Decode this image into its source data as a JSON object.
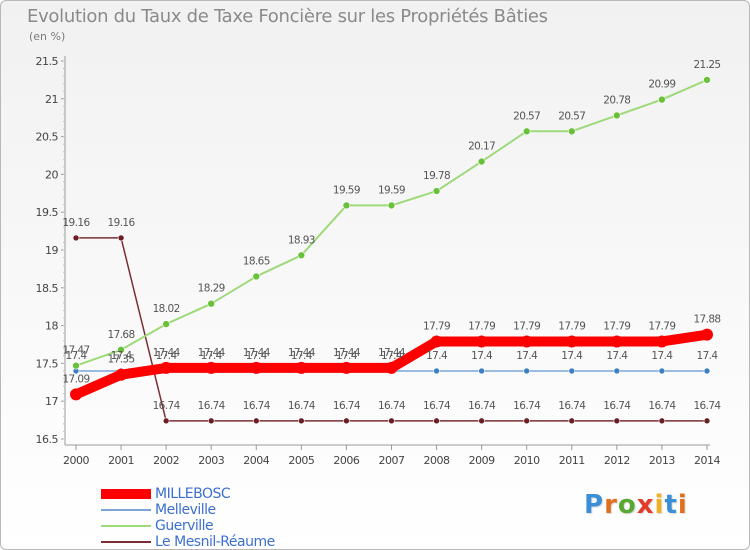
{
  "header": {
    "title": "Evolution du Taux de Taxe Foncière sur les Propriétés Bâties",
    "unit": "(en %)"
  },
  "logo": {
    "text": "Proxiti",
    "letter_colors": [
      "#3a8fd6",
      "#e0701e",
      "#58a832",
      "#e23b2a",
      "#f0b020",
      "#3a8fd6",
      "#e0701e"
    ]
  },
  "colors": {
    "axis": "#9a9a9a",
    "tick_text": "#444444",
    "value_text": "#555555"
  },
  "chart_data": {
    "type": "line",
    "title": "Evolution du Taux de Taxe Foncière sur les Propriétés Bâties",
    "ylabel": "(en %)",
    "xlabel": "",
    "x": [
      "2000",
      "2001",
      "2002",
      "2003",
      "2004",
      "2005",
      "2006",
      "2007",
      "2008",
      "2009",
      "2010",
      "2011",
      "2012",
      "2013",
      "2014"
    ],
    "ylim": [
      16.5,
      21.5
    ],
    "yticks": [
      "16.5",
      "17",
      "17.5",
      "18",
      "18.5",
      "19",
      "19.5",
      "20",
      "20.5",
      "21",
      "21.5"
    ],
    "grid": false,
    "legend_position": "bottom-left",
    "series": [
      {
        "name": "MILLEBOSC",
        "color": "#ff0000",
        "marker_color": "#ff0000",
        "values": [
          17.09,
          17.35,
          17.44,
          17.44,
          17.44,
          17.44,
          17.44,
          17.44,
          17.79,
          17.79,
          17.79,
          17.79,
          17.79,
          17.79,
          17.88
        ],
        "labels": [
          "17.09",
          "17.35",
          "17.44",
          "17.44",
          "17.44",
          "17.44",
          "17.44",
          "17.44",
          "17.79",
          "17.79",
          "17.79",
          "17.79",
          "17.79",
          "17.79",
          "17.88"
        ]
      },
      {
        "name": "Melleville",
        "color": "#7aa5d4",
        "marker_color": "#3d7fc2",
        "values": [
          17.4,
          17.4,
          17.4,
          17.4,
          17.4,
          17.4,
          17.4,
          17.4,
          17.4,
          17.4,
          17.4,
          17.4,
          17.4,
          17.4,
          17.4
        ],
        "labels": [
          "17.4",
          "17.4",
          "17.4",
          "17.4",
          "17.4",
          "17.4",
          "17.4",
          "17.4",
          "17.4",
          "17.4",
          "17.4",
          "17.4",
          "17.4",
          "17.4",
          "17.4"
        ]
      },
      {
        "name": "Guerville",
        "color": "#9ed97a",
        "marker_color": "#69c13a",
        "values": [
          17.47,
          17.68,
          18.02,
          18.29,
          18.65,
          18.93,
          19.59,
          19.59,
          19.78,
          20.17,
          20.57,
          20.57,
          20.78,
          20.99,
          21.25
        ],
        "labels": [
          "17.47",
          "17.68",
          "18.02",
          "18.29",
          "18.65",
          "18.93",
          "19.59",
          "19.59",
          "19.78",
          "20.17",
          "20.57",
          "20.57",
          "20.78",
          "20.99",
          "21.25"
        ]
      },
      {
        "name": "Le Mesnil-Réaume",
        "color": "#7a2e34",
        "marker_color": "#6a1f25",
        "values": [
          19.16,
          19.16,
          16.74,
          16.74,
          16.74,
          16.74,
          16.74,
          16.74,
          16.74,
          16.74,
          16.74,
          16.74,
          16.74,
          16.74,
          16.74
        ],
        "labels": [
          "19.16",
          "19.16",
          "16.74",
          "16.74",
          "16.74",
          "16.74",
          "16.74",
          "16.74",
          "16.74",
          "16.74",
          "16.74",
          "16.74",
          "16.74",
          "16.74",
          "16.74"
        ]
      }
    ]
  }
}
